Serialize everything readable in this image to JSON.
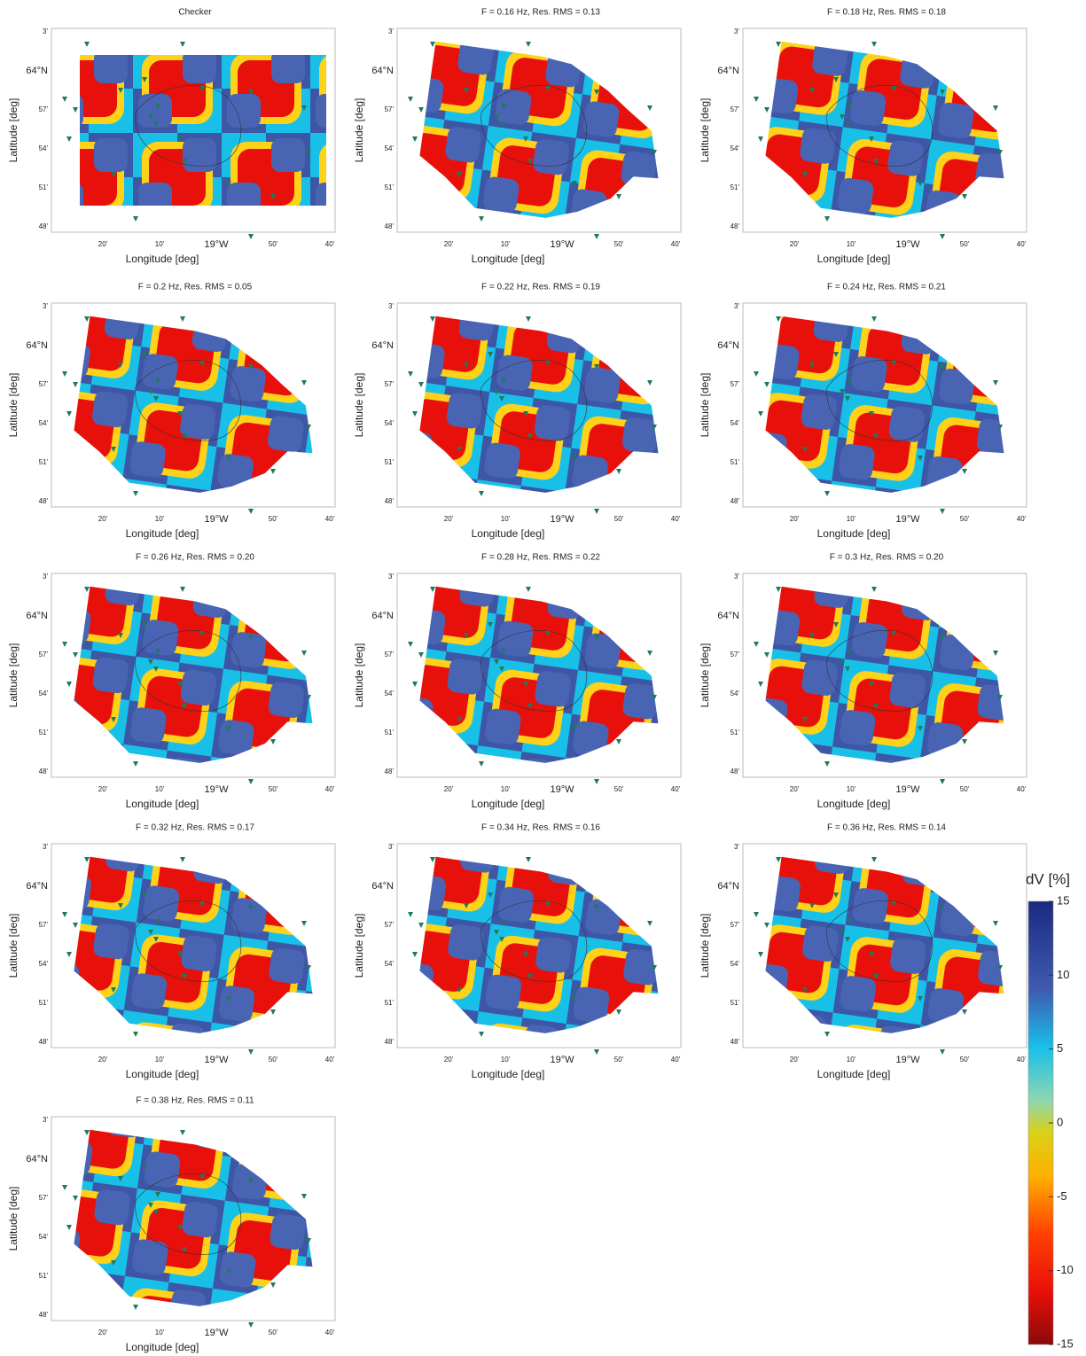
{
  "axes": {
    "x_label": "Longitude [deg]",
    "y_label": "Latitude [deg]",
    "x_ticks": [
      "20'",
      "10'",
      "19°W",
      "50'",
      "40'"
    ],
    "y_ticks": [
      "3'",
      "64°N",
      "57'",
      "54'",
      "51'",
      "48'"
    ]
  },
  "panels": [
    {
      "title": "Checker"
    },
    {
      "title": "F = 0.16 Hz, Res. RMS = 0.13"
    },
    {
      "title": "F = 0.18 Hz, Res. RMS = 0.18"
    },
    {
      "title": "F = 0.2 Hz, Res. RMS = 0.05"
    },
    {
      "title": "F = 0.22 Hz, Res. RMS = 0.19"
    },
    {
      "title": "F = 0.24 Hz, Res. RMS = 0.21"
    },
    {
      "title": "F = 0.26 Hz, Res. RMS = 0.20"
    },
    {
      "title": "F = 0.28 Hz, Res. RMS = 0.22"
    },
    {
      "title": "F = 0.3 Hz, Res. RMS = 0.20"
    },
    {
      "title": "F = 0.32 Hz, Res. RMS = 0.17"
    },
    {
      "title": "F = 0.34 Hz, Res. RMS = 0.16"
    },
    {
      "title": "F = 0.36 Hz, Res. RMS = 0.14"
    },
    {
      "title": "F = 0.38 Hz, Res. RMS = 0.11"
    }
  ],
  "colorbar": {
    "title": "dV [%]",
    "lim": [
      -15,
      15
    ],
    "ticks": [
      15,
      10,
      5,
      0,
      -5,
      -10,
      -15
    ]
  }
}
